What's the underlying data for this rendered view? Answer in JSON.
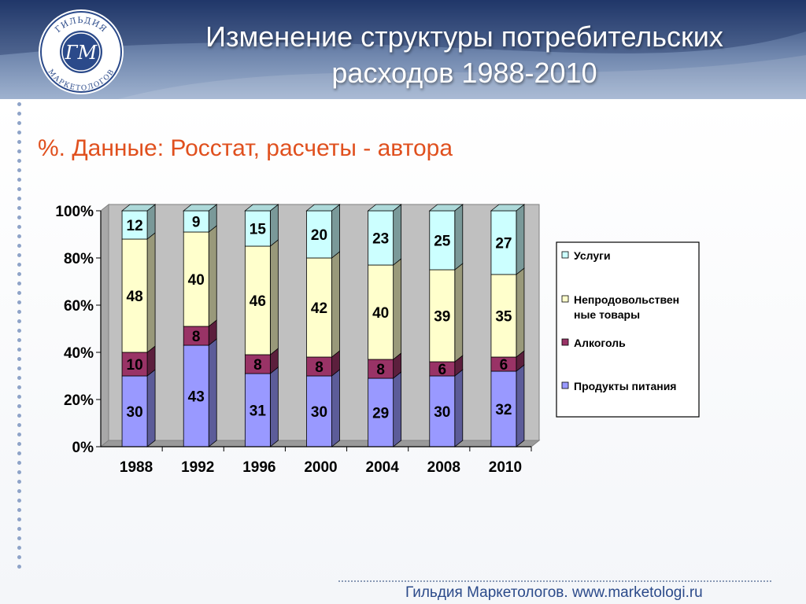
{
  "header": {
    "title_line1": "Изменение структуры потребительских",
    "title_line2": "расходов 1988-2010"
  },
  "logo": {
    "initials": "ГМ",
    "text_top": "ГИЛЬДИЯ",
    "text_bottom": "МАРКЕТОЛОГОВ",
    "colors": {
      "ring": "#2b4a8a",
      "fill": "#ffffff",
      "monogram": "#2b4a8a"
    }
  },
  "subtitle": "%. Данные: Росстат, расчеты - автора",
  "footer": "Гильдия Маркетологов. www.marketologi.ru",
  "chart_data": {
    "type": "bar",
    "stacked": true,
    "categories": [
      "1988",
      "1992",
      "1996",
      "2000",
      "2004",
      "2008",
      "2010"
    ],
    "series": [
      {
        "name": "Продукты питания",
        "values": [
          30,
          43,
          31,
          30,
          29,
          30,
          32
        ],
        "color": "#9999ff"
      },
      {
        "name": "Алкоголь",
        "values": [
          10,
          8,
          8,
          8,
          8,
          6,
          6
        ],
        "color": "#993366"
      },
      {
        "name": "Непродовольствен ные товары",
        "values": [
          48,
          40,
          46,
          42,
          40,
          39,
          35
        ],
        "color": "#ffffcc"
      },
      {
        "name": "Услуги",
        "values": [
          12,
          9,
          15,
          20,
          23,
          25,
          27
        ],
        "color": "#ccffff"
      }
    ],
    "legend_order": [
      "Услуги",
      "Непродовольствен ные товары",
      "Алкоголь",
      "Продукты питания"
    ],
    "yticks": [
      "0%",
      "20%",
      "40%",
      "60%",
      "80%",
      "100%"
    ],
    "ylim": [
      0,
      100
    ],
    "grid": false,
    "legend_position": "right",
    "colors": {
      "wall": "#c0c0c0",
      "outline": "#000000"
    }
  }
}
